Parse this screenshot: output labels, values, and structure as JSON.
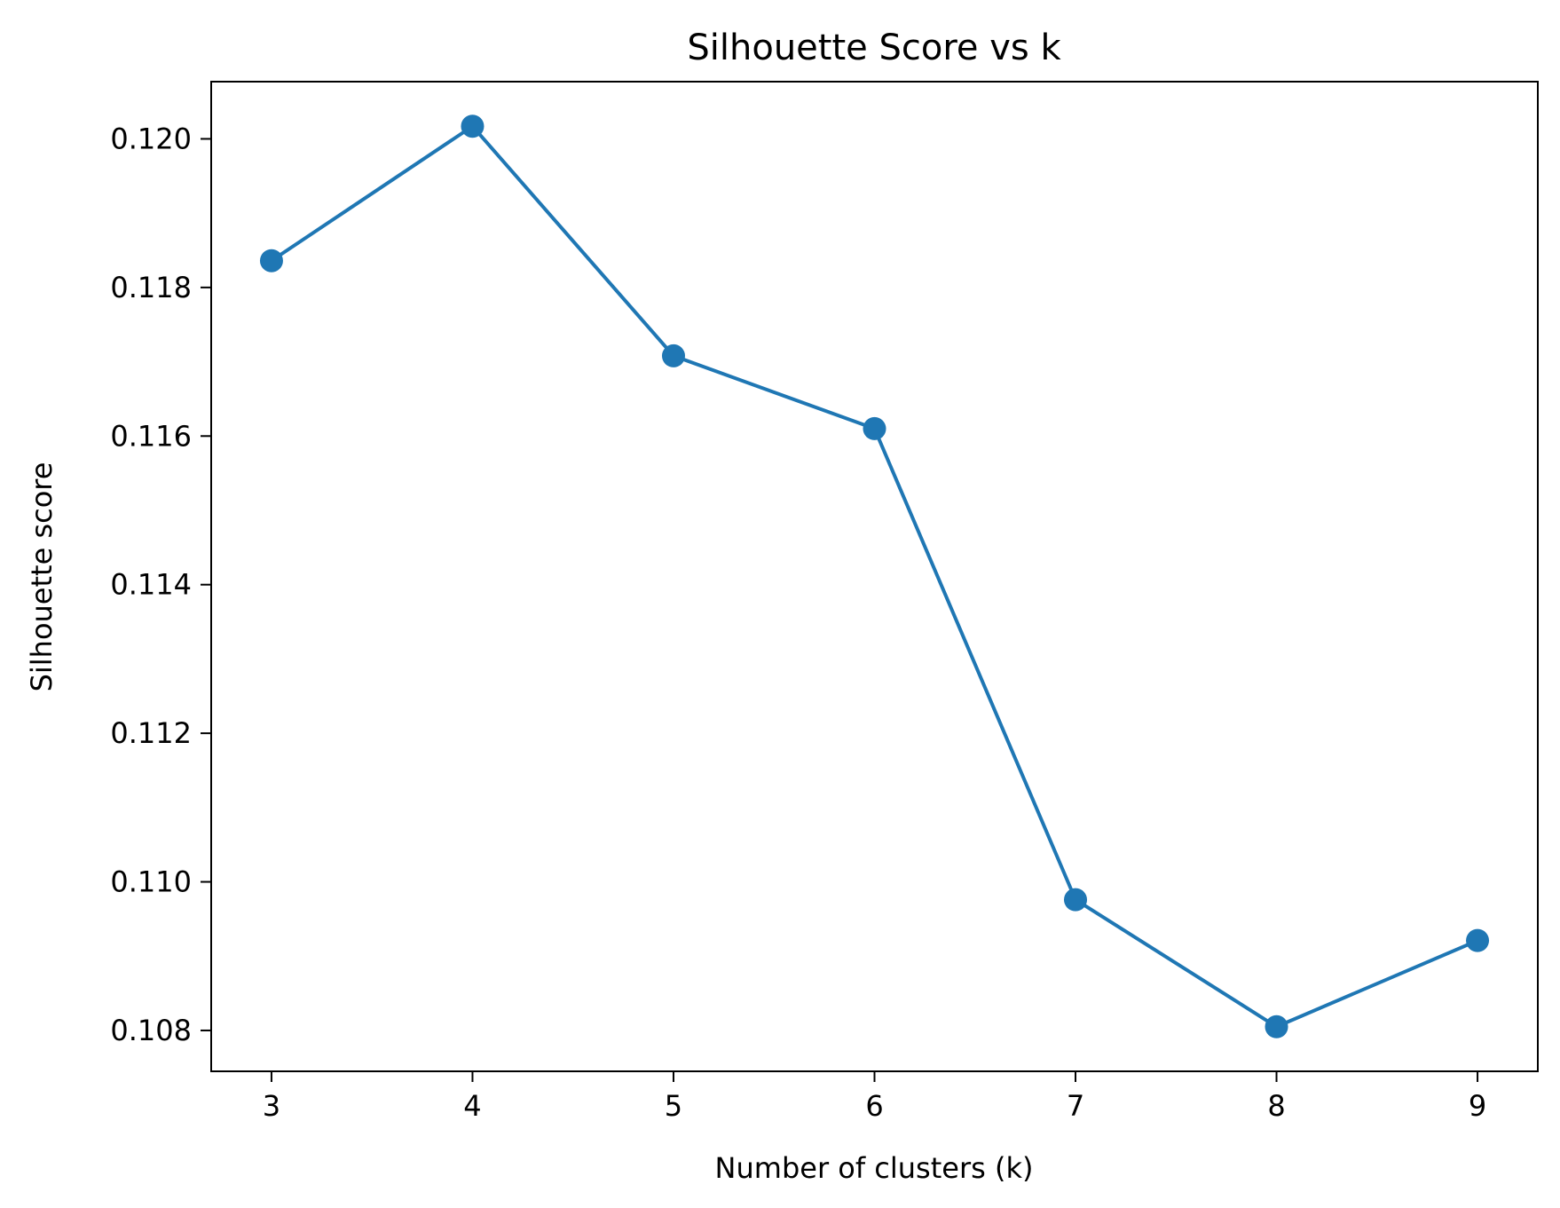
{
  "chart_data": {
    "type": "line",
    "title": "Silhouette Score vs k",
    "xlabel": "Number of clusters (k)",
    "ylabel": "Silhouette score",
    "x": [
      3,
      4,
      5,
      6,
      7,
      8,
      9
    ],
    "series": [
      {
        "values": [
          0.11836,
          0.12017,
          0.11708,
          0.1161,
          0.10976,
          0.10805,
          0.10921
        ]
      }
    ],
    "xlim": [
      2.7,
      9.3
    ],
    "ylim": [
      0.10745,
      0.12077
    ],
    "x_ticks": [
      "3",
      "4",
      "5",
      "6",
      "7",
      "8",
      "9"
    ],
    "y_ticks": [
      "0.108",
      "0.110",
      "0.112",
      "0.114",
      "0.116",
      "0.118",
      "0.120"
    ],
    "grid": false,
    "legend": "none",
    "line_color": "#1f77b4",
    "marker": "circle"
  }
}
